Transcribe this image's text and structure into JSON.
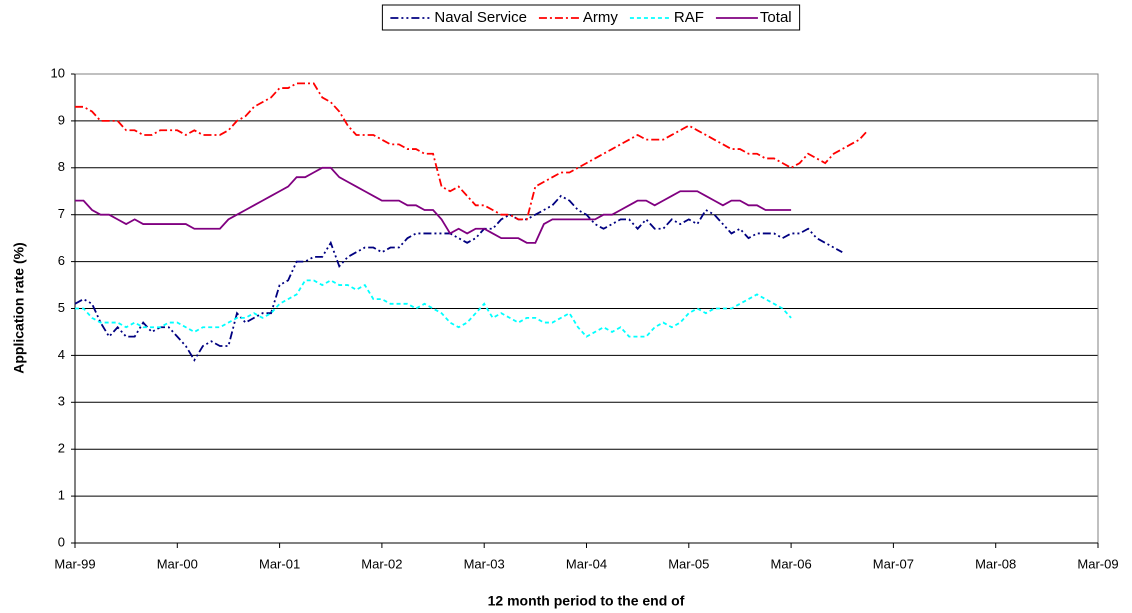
{
  "chart_data": {
    "type": "line",
    "y_label": "Application rate (%)",
    "x_label": "12 month period to the end of",
    "categories": [
      "Mar-99",
      null,
      null,
      null,
      null,
      null,
      null,
      null,
      null,
      null,
      null,
      null,
      "Mar-00",
      null,
      null,
      null,
      null,
      null,
      null,
      null,
      null,
      null,
      null,
      null,
      "Mar-01",
      null,
      null,
      null,
      null,
      null,
      null,
      null,
      null,
      null,
      null,
      null,
      "Mar-02",
      null,
      null,
      null,
      null,
      null,
      null,
      null,
      null,
      null,
      null,
      null,
      "Mar-03",
      null,
      null,
      null,
      null,
      null,
      null,
      null,
      null,
      null,
      null,
      null,
      "Mar-04",
      null,
      null,
      null,
      null,
      null,
      null,
      null,
      null,
      null,
      null,
      null,
      "Mar-05",
      null,
      null,
      null,
      null,
      null,
      null,
      null,
      null,
      null,
      null,
      null,
      "Mar-06",
      null,
      null,
      null,
      null,
      null,
      null,
      null,
      null,
      null,
      null,
      null,
      "Mar-07",
      null,
      null,
      null,
      null,
      null,
      null,
      null,
      null,
      null,
      null,
      null,
      "Mar-08",
      null,
      null,
      null,
      null,
      null,
      null,
      null,
      null,
      null,
      null,
      null,
      "Mar-09"
    ],
    "ylim": [
      0,
      10
    ],
    "yticks": [
      0,
      1,
      2,
      3,
      4,
      5,
      6,
      7,
      8,
      9,
      10
    ],
    "grid": true,
    "legend": "top",
    "series": [
      {
        "name": "Naval Service",
        "color": "#000080",
        "dash": "dashdotdot",
        "values": [
          5.1,
          5.2,
          5.1,
          4.7,
          4.4,
          4.6,
          4.4,
          4.4,
          4.7,
          4.5,
          4.6,
          4.6,
          4.4,
          4.2,
          3.9,
          4.2,
          4.3,
          4.2,
          4.2,
          4.9,
          4.7,
          4.8,
          4.9,
          4.9,
          5.5,
          5.6,
          6.0,
          6.0,
          6.1,
          6.1,
          6.4,
          5.9,
          6.1,
          6.2,
          6.3,
          6.3,
          6.2,
          6.3,
          6.3,
          6.5,
          6.6,
          6.6,
          6.6,
          6.6,
          6.6,
          6.5,
          6.4,
          6.5,
          6.7,
          6.7,
          6.9,
          7.0,
          6.9,
          6.9,
          7.0,
          7.1,
          7.2,
          7.4,
          7.3,
          7.1,
          7.0,
          6.8,
          6.7,
          6.8,
          6.9,
          6.9,
          6.7,
          6.9,
          6.7,
          6.7,
          6.9,
          6.8,
          6.9,
          6.8,
          7.1,
          7.0,
          6.8,
          6.6,
          6.7,
          6.5,
          6.6,
          6.6,
          6.6,
          6.5,
          6.6,
          6.6,
          6.7,
          6.5,
          6.4,
          6.3,
          6.2,
          null,
          null,
          null,
          null,
          null,
          null,
          null,
          null,
          null,
          null,
          null,
          null,
          null,
          null,
          null,
          null,
          null,
          null,
          null,
          null,
          null,
          null,
          null,
          null,
          null,
          null,
          null,
          null,
          null,
          null
        ]
      },
      {
        "name": "Army",
        "color": "#ff0000",
        "dash": "dashdot",
        "values": [
          9.3,
          9.3,
          9.2,
          9.0,
          9.0,
          9.0,
          8.8,
          8.8,
          8.7,
          8.7,
          8.8,
          8.8,
          8.8,
          8.7,
          8.8,
          8.7,
          8.7,
          8.7,
          8.8,
          9.0,
          9.1,
          9.3,
          9.4,
          9.5,
          9.7,
          9.7,
          9.8,
          9.8,
          9.8,
          9.5,
          9.4,
          9.2,
          8.9,
          8.7,
          8.7,
          8.7,
          8.6,
          8.5,
          8.5,
          8.4,
          8.4,
          8.3,
          8.3,
          7.6,
          7.5,
          7.6,
          7.4,
          7.2,
          7.2,
          7.1,
          7.0,
          7.0,
          6.9,
          6.9,
          7.6,
          7.7,
          7.8,
          7.9,
          7.9,
          8.0,
          8.1,
          8.2,
          8.3,
          8.4,
          8.5,
          8.6,
          8.7,
          8.6,
          8.6,
          8.6,
          8.7,
          8.8,
          8.9,
          8.8,
          8.7,
          8.6,
          8.5,
          8.4,
          8.4,
          8.3,
          8.3,
          8.2,
          8.2,
          8.1,
          8.0,
          8.1,
          8.3,
          8.2,
          8.1,
          8.3,
          8.4,
          8.5,
          8.6,
          8.8,
          null,
          null,
          null,
          null,
          null,
          null,
          null,
          null,
          null,
          null,
          null,
          null,
          null,
          null,
          null,
          null,
          null,
          null,
          null,
          null,
          null,
          null,
          null,
          null,
          null,
          null,
          null
        ]
      },
      {
        "name": "RAF",
        "color": "#00ffff",
        "dash": "dash",
        "values": [
          5.0,
          5.0,
          4.8,
          4.7,
          4.7,
          4.7,
          4.6,
          4.7,
          4.6,
          4.6,
          4.6,
          4.7,
          4.7,
          4.6,
          4.5,
          4.6,
          4.6,
          4.6,
          4.7,
          4.8,
          4.8,
          4.9,
          4.8,
          4.9,
          5.1,
          5.2,
          5.3,
          5.6,
          5.6,
          5.5,
          5.6,
          5.5,
          5.5,
          5.4,
          5.5,
          5.2,
          5.2,
          5.1,
          5.1,
          5.1,
          5.0,
          5.1,
          5.0,
          4.9,
          4.7,
          4.6,
          4.7,
          4.9,
          5.1,
          4.8,
          4.9,
          4.8,
          4.7,
          4.8,
          4.8,
          4.7,
          4.7,
          4.8,
          4.9,
          4.6,
          4.4,
          4.5,
          4.6,
          4.5,
          4.6,
          4.4,
          4.4,
          4.4,
          4.6,
          4.7,
          4.6,
          4.7,
          4.9,
          5.0,
          4.9,
          5.0,
          5.0,
          5.0,
          5.1,
          5.2,
          5.3,
          5.2,
          5.1,
          5.0,
          4.8,
          null,
          null,
          null,
          null,
          null,
          null,
          null,
          null,
          null,
          null,
          null,
          null,
          null,
          null,
          null,
          null,
          null,
          null,
          null,
          null,
          null,
          null,
          null,
          null,
          null,
          null,
          null,
          null,
          null,
          null,
          null,
          null,
          null,
          null,
          null,
          null
        ]
      },
      {
        "name": "Total",
        "color": "#800080",
        "dash": "solid",
        "values": [
          7.3,
          7.3,
          7.1,
          7.0,
          7.0,
          6.9,
          6.8,
          6.9,
          6.8,
          6.8,
          6.8,
          6.8,
          6.8,
          6.8,
          6.7,
          6.7,
          6.7,
          6.7,
          6.9,
          7.0,
          7.1,
          7.2,
          7.3,
          7.4,
          7.5,
          7.6,
          7.8,
          7.8,
          7.9,
          8.0,
          8.0,
          7.8,
          7.7,
          7.6,
          7.5,
          7.4,
          7.3,
          7.3,
          7.3,
          7.2,
          7.2,
          7.1,
          7.1,
          6.9,
          6.6,
          6.7,
          6.6,
          6.7,
          6.7,
          6.6,
          6.5,
          6.5,
          6.5,
          6.4,
          6.4,
          6.8,
          6.9,
          6.9,
          6.9,
          6.9,
          6.9,
          6.9,
          7.0,
          7.0,
          7.1,
          7.2,
          7.3,
          7.3,
          7.2,
          7.3,
          7.4,
          7.5,
          7.5,
          7.5,
          7.4,
          7.3,
          7.2,
          7.3,
          7.3,
          7.2,
          7.2,
          7.1,
          7.1,
          7.1,
          7.1,
          null,
          null,
          null,
          null,
          null,
          null,
          null,
          null,
          null,
          null,
          null,
          null,
          null,
          null,
          null,
          null,
          null,
          null,
          null,
          null,
          null,
          null,
          null,
          null,
          null,
          null,
          null,
          null,
          null,
          null,
          null,
          null,
          null,
          null,
          null,
          null
        ]
      }
    ]
  }
}
